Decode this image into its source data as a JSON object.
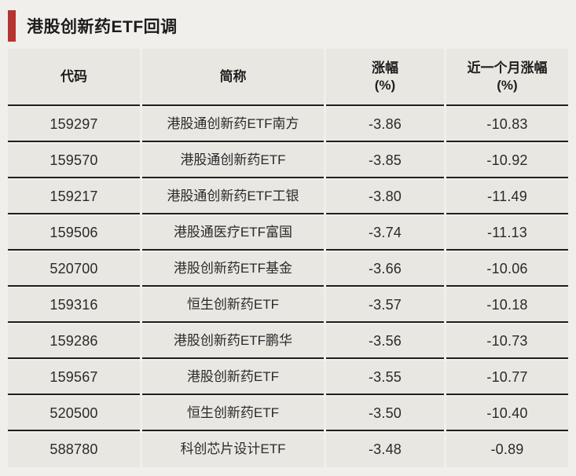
{
  "header": {
    "title": "港股创新药ETF回调"
  },
  "colors": {
    "accent_red": "#b23531",
    "page_bg": "#f1efeb",
    "cell_bg": "#e9e7e2",
    "divider_line": "#1f1f1f",
    "text": "#2a2a2a"
  },
  "chart_data": {
    "type": "table",
    "title": "港股创新药ETF回调",
    "columns": [
      "代码",
      "简称",
      "涨幅\n(%)",
      "近一个月涨幅\n(%)"
    ],
    "rows": [
      [
        "159297",
        "港股通创新药ETF南方",
        "-3.86",
        "-10.83"
      ],
      [
        "159570",
        "港股通创新药ETF",
        "-3.85",
        "-10.92"
      ],
      [
        "159217",
        "港股通创新药ETF工银",
        "-3.80",
        "-11.49"
      ],
      [
        "159506",
        "港股通医疗ETF富国",
        "-3.74",
        "-11.13"
      ],
      [
        "520700",
        "港股创新药ETF基金",
        "-3.66",
        "-10.06"
      ],
      [
        "159316",
        "恒生创新药ETF",
        "-3.57",
        "-10.18"
      ],
      [
        "159286",
        "港股创新药ETF鹏华",
        "-3.56",
        "-10.73"
      ],
      [
        "159567",
        "港股创新药ETF",
        "-3.55",
        "-10.77"
      ],
      [
        "520500",
        "恒生创新药ETF",
        "-3.50",
        "-10.40"
      ],
      [
        "588780",
        "科创芯片设计ETF",
        "-3.48",
        "-0.89"
      ]
    ]
  }
}
